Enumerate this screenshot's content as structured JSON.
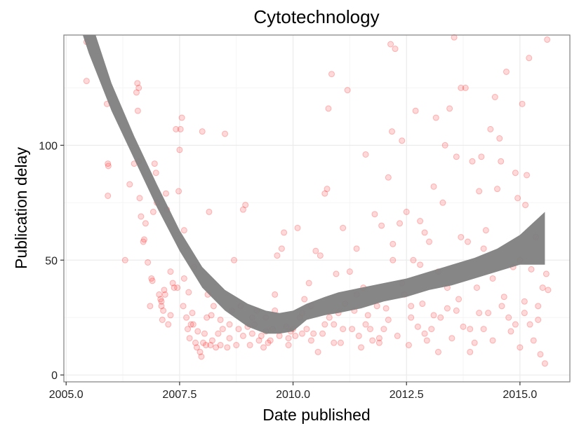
{
  "chart_data": {
    "type": "scatter",
    "title": "Cytotechnology",
    "xlabel": "Date published",
    "ylabel": "Publication delay",
    "xlim": [
      2004.95,
      2016.1
    ],
    "ylim": [
      -3,
      148
    ],
    "x_ticks": [
      2005.0,
      2007.5,
      2010.0,
      2012.5,
      2015.0
    ],
    "x_tick_labels": [
      "2005.0",
      "2007.5",
      "2010.0",
      "2012.5",
      "2015.0"
    ],
    "y_ticks": [
      0,
      50,
      100
    ],
    "y_tick_labels": [
      "0",
      "50",
      "100"
    ],
    "grid": true,
    "point_color": "#ff0000",
    "point_opacity": 0.15,
    "band_color": "#808080",
    "points": [
      [
        2005.45,
        150
      ],
      [
        2005.45,
        145
      ],
      [
        2005.45,
        128
      ],
      [
        2005.9,
        118
      ],
      [
        2005.92,
        92
      ],
      [
        2005.93,
        91
      ],
      [
        2005.92,
        78
      ],
      [
        2006.3,
        50
      ],
      [
        2006.4,
        83
      ],
      [
        2006.5,
        92
      ],
      [
        2006.55,
        123
      ],
      [
        2006.57,
        127
      ],
      [
        2006.6,
        125
      ],
      [
        2006.58,
        115
      ],
      [
        2006.6,
        93
      ],
      [
        2006.62,
        77
      ],
      [
        2006.65,
        69
      ],
      [
        2006.7,
        58
      ],
      [
        2006.72,
        59
      ],
      [
        2006.75,
        66
      ],
      [
        2006.8,
        49
      ],
      [
        2006.85,
        30
      ],
      [
        2006.88,
        42
      ],
      [
        2006.9,
        41
      ],
      [
        2006.92,
        71
      ],
      [
        2006.95,
        92
      ],
      [
        2006.98,
        88
      ],
      [
        2007.0,
        75
      ],
      [
        2007.05,
        35
      ],
      [
        2007.08,
        33
      ],
      [
        2007.1,
        32
      ],
      [
        2007.12,
        24
      ],
      [
        2007.14,
        28
      ],
      [
        2007.16,
        37
      ],
      [
        2007.18,
        35
      ],
      [
        2007.2,
        79
      ],
      [
        2007.22,
        72
      ],
      [
        2007.25,
        22
      ],
      [
        2007.3,
        45
      ],
      [
        2007.35,
        40
      ],
      [
        2007.38,
        38
      ],
      [
        2007.42,
        107
      ],
      [
        2007.45,
        38
      ],
      [
        2007.48,
        80
      ],
      [
        2007.5,
        98
      ],
      [
        2007.52,
        107
      ],
      [
        2007.55,
        112
      ],
      [
        2007.58,
        30
      ],
      [
        2007.6,
        63
      ],
      [
        2007.65,
        25
      ],
      [
        2007.68,
        20
      ],
      [
        2007.72,
        16
      ],
      [
        2007.75,
        22
      ],
      [
        2007.78,
        27
      ],
      [
        2007.8,
        22
      ],
      [
        2007.82,
        47
      ],
      [
        2007.85,
        14
      ],
      [
        2007.88,
        12
      ],
      [
        2007.9,
        19
      ],
      [
        2007.95,
        10
      ],
      [
        2007.98,
        8
      ],
      [
        2008.0,
        106
      ],
      [
        2008.02,
        14
      ],
      [
        2008.05,
        18
      ],
      [
        2008.08,
        13
      ],
      [
        2008.1,
        25
      ],
      [
        2008.12,
        35
      ],
      [
        2008.15,
        71
      ],
      [
        2008.18,
        13
      ],
      [
        2008.22,
        15
      ],
      [
        2008.25,
        30
      ],
      [
        2008.3,
        12
      ],
      [
        2008.35,
        18
      ],
      [
        2008.4,
        13
      ],
      [
        2008.45,
        20
      ],
      [
        2008.5,
        105
      ],
      [
        2008.55,
        12
      ],
      [
        2008.6,
        16
      ],
      [
        2008.65,
        28
      ],
      [
        2008.7,
        50
      ],
      [
        2008.75,
        13
      ],
      [
        2008.8,
        20
      ],
      [
        2008.85,
        30
      ],
      [
        2008.9,
        72
      ],
      [
        2008.95,
        74
      ],
      [
        2009.0,
        21
      ],
      [
        2009.05,
        13
      ],
      [
        2009.1,
        18
      ],
      [
        2009.15,
        22
      ],
      [
        2009.2,
        28
      ],
      [
        2009.25,
        15
      ],
      [
        2009.3,
        17
      ],
      [
        2009.35,
        12
      ],
      [
        2009.4,
        25
      ],
      [
        2009.45,
        14
      ],
      [
        2009.5,
        15
      ],
      [
        2009.55,
        20
      ],
      [
        2009.6,
        35
      ],
      [
        2009.65,
        52
      ],
      [
        2009.7,
        17
      ],
      [
        2009.75,
        55
      ],
      [
        2009.8,
        62
      ],
      [
        2009.85,
        21
      ],
      [
        2009.9,
        16
      ],
      [
        2009.95,
        19
      ],
      [
        2010.0,
        20
      ],
      [
        2010.05,
        17
      ],
      [
        2010.1,
        64
      ],
      [
        2010.15,
        25
      ],
      [
        2010.2,
        18
      ],
      [
        2010.25,
        33
      ],
      [
        2010.3,
        20
      ],
      [
        2010.35,
        40
      ],
      [
        2010.4,
        15
      ],
      [
        2010.45,
        18
      ],
      [
        2010.5,
        54
      ],
      [
        2010.55,
        10
      ],
      [
        2010.6,
        52
      ],
      [
        2010.65,
        18
      ],
      [
        2010.7,
        79
      ],
      [
        2010.75,
        81
      ],
      [
        2010.78,
        116
      ],
      [
        2010.8,
        25
      ],
      [
        2010.85,
        131
      ],
      [
        2010.9,
        22
      ],
      [
        2010.95,
        44
      ],
      [
        2011.0,
        27
      ],
      [
        2011.05,
        14
      ],
      [
        2011.1,
        64
      ],
      [
        2011.15,
        31
      ],
      [
        2011.2,
        124
      ],
      [
        2011.25,
        45
      ],
      [
        2011.3,
        20
      ],
      [
        2011.35,
        28
      ],
      [
        2011.4,
        55
      ],
      [
        2011.45,
        17
      ],
      [
        2011.5,
        12
      ],
      [
        2011.55,
        38
      ],
      [
        2011.6,
        96
      ],
      [
        2011.65,
        26
      ],
      [
        2011.7,
        20
      ],
      [
        2011.75,
        15
      ],
      [
        2011.8,
        70
      ],
      [
        2011.85,
        30
      ],
      [
        2011.9,
        14
      ],
      [
        2011.95,
        65
      ],
      [
        2012.0,
        20
      ],
      [
        2012.05,
        29
      ],
      [
        2012.1,
        86
      ],
      [
        2012.15,
        144
      ],
      [
        2012.18,
        106
      ],
      [
        2012.2,
        57
      ],
      [
        2012.25,
        142
      ],
      [
        2012.3,
        17
      ],
      [
        2012.35,
        66
      ],
      [
        2012.4,
        102
      ],
      [
        2012.45,
        35
      ],
      [
        2012.5,
        71
      ],
      [
        2012.55,
        13
      ],
      [
        2012.6,
        30
      ],
      [
        2012.65,
        50
      ],
      [
        2012.7,
        115
      ],
      [
        2012.75,
        21
      ],
      [
        2012.8,
        67
      ],
      [
        2012.85,
        31
      ],
      [
        2012.9,
        62
      ],
      [
        2012.95,
        15
      ],
      [
        2013.0,
        58
      ],
      [
        2013.05,
        20
      ],
      [
        2013.1,
        82
      ],
      [
        2013.15,
        112
      ],
      [
        2013.2,
        10
      ],
      [
        2013.25,
        25
      ],
      [
        2013.3,
        75
      ],
      [
        2013.35,
        100
      ],
      [
        2013.4,
        29
      ],
      [
        2013.45,
        116
      ],
      [
        2013.5,
        16
      ],
      [
        2013.55,
        147
      ],
      [
        2013.6,
        95
      ],
      [
        2013.65,
        33
      ],
      [
        2013.7,
        125
      ],
      [
        2013.75,
        21
      ],
      [
        2013.8,
        125
      ],
      [
        2013.85,
        58
      ],
      [
        2013.9,
        10
      ],
      [
        2013.95,
        93
      ],
      [
        2014.0,
        14
      ],
      [
        2014.05,
        38
      ],
      [
        2014.1,
        80
      ],
      [
        2014.15,
        95
      ],
      [
        2014.2,
        20
      ],
      [
        2014.25,
        63
      ],
      [
        2014.3,
        27
      ],
      [
        2014.35,
        107
      ],
      [
        2014.4,
        15
      ],
      [
        2014.45,
        121
      ],
      [
        2014.5,
        81
      ],
      [
        2014.55,
        103
      ],
      [
        2014.58,
        93
      ],
      [
        2014.6,
        150
      ],
      [
        2014.65,
        34
      ],
      [
        2014.7,
        132
      ],
      [
        2014.75,
        25
      ],
      [
        2014.8,
        19
      ],
      [
        2014.85,
        47
      ],
      [
        2014.9,
        88
      ],
      [
        2014.95,
        77
      ],
      [
        2015.0,
        12
      ],
      [
        2015.05,
        118
      ],
      [
        2015.1,
        27
      ],
      [
        2015.12,
        74
      ],
      [
        2015.15,
        87
      ],
      [
        2015.2,
        138
      ],
      [
        2015.22,
        22
      ],
      [
        2015.25,
        46
      ],
      [
        2015.3,
        15
      ],
      [
        2015.35,
        60
      ],
      [
        2015.4,
        30
      ],
      [
        2015.45,
        9
      ],
      [
        2015.5,
        38
      ],
      [
        2015.55,
        5
      ],
      [
        2015.58,
        44
      ],
      [
        2015.6,
        146
      ],
      [
        2015.62,
        37
      ],
      [
        2007.1,
        30
      ],
      [
        2007.3,
        26
      ],
      [
        2007.7,
        36
      ],
      [
        2008.2,
        26
      ],
      [
        2008.6,
        22
      ],
      [
        2009.1,
        25
      ],
      [
        2009.6,
        28
      ],
      [
        2010.2,
        27
      ],
      [
        2010.7,
        22
      ],
      [
        2011.1,
        20
      ],
      [
        2011.6,
        22
      ],
      [
        2012.1,
        24
      ],
      [
        2012.6,
        25
      ],
      [
        2013.1,
        26
      ],
      [
        2013.6,
        28
      ],
      [
        2014.1,
        27
      ],
      [
        2014.6,
        30
      ],
      [
        2015.1,
        32
      ],
      [
        2015.4,
        24
      ],
      [
        2008.9,
        17
      ],
      [
        2009.9,
        13
      ],
      [
        2010.9,
        14
      ],
      [
        2011.9,
        16
      ],
      [
        2012.9,
        18
      ],
      [
        2013.9,
        20
      ],
      [
        2014.9,
        22
      ],
      [
        2012.4,
        40
      ],
      [
        2013.4,
        38
      ],
      [
        2014.4,
        42
      ],
      [
        2011.4,
        35
      ],
      [
        2010.4,
        30
      ],
      [
        2009.4,
        19
      ],
      [
        2008.4,
        24
      ],
      [
        2007.6,
        42
      ],
      [
        2012.2,
        50
      ],
      [
        2013.2,
        45
      ],
      [
        2014.2,
        55
      ],
      [
        2015.0,
        50
      ],
      [
        2013.7,
        60
      ],
      [
        2012.8,
        48
      ]
    ],
    "smooth_band": [
      {
        "x": 2005.3,
        "lo": 152,
        "hi": 152
      },
      {
        "x": 2005.5,
        "lo": 140,
        "hi": 157
      },
      {
        "x": 2006.0,
        "lo": 115,
        "hi": 127
      },
      {
        "x": 2006.5,
        "lo": 94,
        "hi": 104
      },
      {
        "x": 2007.0,
        "lo": 73,
        "hi": 83
      },
      {
        "x": 2007.5,
        "lo": 54,
        "hi": 63
      },
      {
        "x": 2008.0,
        "lo": 38,
        "hi": 47
      },
      {
        "x": 2008.5,
        "lo": 28,
        "hi": 37
      },
      {
        "x": 2009.0,
        "lo": 21,
        "hi": 31
      },
      {
        "x": 2009.4,
        "lo": 18,
        "hi": 28
      },
      {
        "x": 2009.7,
        "lo": 18,
        "hi": 27
      },
      {
        "x": 2010.0,
        "lo": 19,
        "hi": 28
      },
      {
        "x": 2010.3,
        "lo": 24,
        "hi": 31
      },
      {
        "x": 2010.7,
        "lo": 26,
        "hi": 34
      },
      {
        "x": 2011.0,
        "lo": 27,
        "hi": 36
      },
      {
        "x": 2011.5,
        "lo": 29,
        "hi": 38
      },
      {
        "x": 2012.0,
        "lo": 32,
        "hi": 40
      },
      {
        "x": 2012.5,
        "lo": 34,
        "hi": 42
      },
      {
        "x": 2013.0,
        "lo": 37,
        "hi": 45
      },
      {
        "x": 2013.5,
        "lo": 39,
        "hi": 48
      },
      {
        "x": 2014.0,
        "lo": 42,
        "hi": 51
      },
      {
        "x": 2014.5,
        "lo": 45,
        "hi": 55
      },
      {
        "x": 2015.0,
        "lo": 48,
        "hi": 61
      },
      {
        "x": 2015.55,
        "lo": 48,
        "hi": 71
      }
    ]
  }
}
